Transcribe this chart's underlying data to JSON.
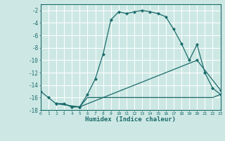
{
  "xlabel": "Humidex (Indice chaleur)",
  "bg_color": "#cde8e4",
  "grid_color": "#ffffff",
  "line_color": "#1a6b6b",
  "xlim": [
    0,
    23
  ],
  "ylim": [
    -18,
    -1
  ],
  "xticks": [
    0,
    1,
    2,
    3,
    4,
    5,
    6,
    7,
    8,
    9,
    10,
    11,
    12,
    13,
    14,
    15,
    16,
    17,
    18,
    19,
    20,
    21,
    22,
    23
  ],
  "yticks": [
    -18,
    -16,
    -14,
    -12,
    -10,
    -8,
    -6,
    -4,
    -2
  ],
  "curve1_x": [
    0,
    1,
    2,
    3,
    4,
    5,
    6,
    7,
    8,
    9,
    10,
    11,
    12,
    13,
    14,
    15,
    16,
    17,
    18,
    19,
    20,
    21,
    22,
    23
  ],
  "curve1_y": [
    -15,
    -16,
    -17,
    -17,
    -17.5,
    -17.5,
    -15.5,
    -13,
    -9,
    -3.5,
    -2.2,
    -2.5,
    -2.2,
    -2.0,
    -2.2,
    -2.5,
    -3.0,
    -5.0,
    -7.3,
    -10,
    -7.5,
    -12,
    -14.5,
    -15.5
  ],
  "curve2_x": [
    2,
    3,
    4,
    5,
    6,
    7,
    8,
    9,
    10,
    11,
    12,
    13,
    14,
    15,
    16,
    17,
    18,
    19,
    20,
    21,
    22,
    23
  ],
  "curve2_y": [
    -17,
    -17,
    -17.5,
    -17.5,
    -16.0,
    -16.0,
    -16.0,
    -16.0,
    -16.0,
    -16.0,
    -16.0,
    -16.0,
    -16.0,
    -16.0,
    -16.0,
    -16.0,
    -16.0,
    -16.0,
    -16.0,
    -16.0,
    -16.0,
    -15.5
  ],
  "curve3_x": [
    2,
    5,
    20,
    23
  ],
  "curve3_y": [
    -17,
    -17.5,
    -10,
    -14.8
  ]
}
